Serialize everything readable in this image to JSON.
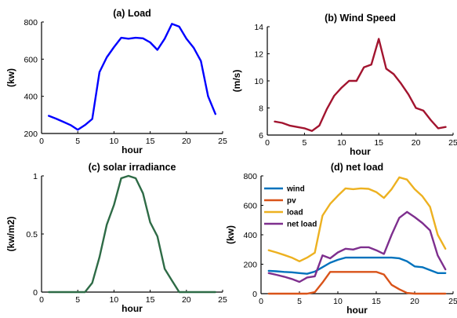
{
  "chart_data": [
    {
      "type": "line",
      "title": "(a) Load",
      "xlabel": "hour",
      "ylabel": "(kw)",
      "xlim": [
        0,
        25
      ],
      "ylim": [
        200,
        800
      ],
      "xticks": [
        0,
        5,
        10,
        15,
        20,
        25
      ],
      "yticks": [
        200,
        400,
        600,
        800
      ],
      "grid": false,
      "legend": "none",
      "x": [
        1,
        2,
        3,
        4,
        5,
        6,
        7,
        8,
        9,
        10,
        11,
        12,
        13,
        14,
        15,
        16,
        17,
        18,
        19,
        20,
        21,
        22,
        23,
        24
      ],
      "series": [
        {
          "color": "#0000ff",
          "values": [
            295,
            280,
            263,
            245,
            220,
            245,
            278,
            530,
            610,
            665,
            715,
            710,
            715,
            712,
            690,
            650,
            710,
            790,
            775,
            710,
            662,
            590,
            400,
            305
          ]
        }
      ]
    },
    {
      "type": "line",
      "title": "(b) Wind Speed",
      "xlabel": "hour",
      "ylabel": "(m/s)",
      "xlim": [
        0,
        25
      ],
      "ylim": [
        6,
        14
      ],
      "xticks": [
        0,
        5,
        10,
        15,
        20,
        25
      ],
      "yticks": [
        6,
        8,
        10,
        12,
        14
      ],
      "grid": false,
      "legend": "none",
      "x": [
        1,
        2,
        3,
        4,
        5,
        6,
        7,
        8,
        9,
        10,
        11,
        12,
        13,
        14,
        15,
        16,
        17,
        18,
        19,
        20,
        21,
        22,
        23,
        24
      ],
      "series": [
        {
          "color": "#a2142f",
          "values": [
            7.0,
            6.9,
            6.7,
            6.6,
            6.5,
            6.3,
            6.7,
            7.9,
            8.9,
            9.5,
            10.0,
            10.0,
            11.0,
            11.2,
            13.1,
            10.9,
            10.5,
            9.8,
            9.0,
            8.0,
            7.8,
            7.1,
            6.5,
            6.6
          ]
        }
      ]
    },
    {
      "type": "line",
      "title": "(c) solar irradiance",
      "xlabel": "hour",
      "ylabel": "(kw/m2)",
      "xlim": [
        0,
        25
      ],
      "ylim": [
        0,
        1
      ],
      "xticks": [
        0,
        5,
        10,
        15,
        20,
        25
      ],
      "yticks": [
        0,
        0.5,
        1
      ],
      "grid": false,
      "legend": "none",
      "x": [
        1,
        2,
        3,
        4,
        5,
        6,
        7,
        8,
        9,
        10,
        11,
        12,
        13,
        14,
        15,
        16,
        17,
        18,
        19,
        20,
        21,
        22,
        23,
        24
      ],
      "series": [
        {
          "color": "#2e6b46",
          "values": [
            0,
            0,
            0,
            0,
            0,
            0,
            0.08,
            0.3,
            0.58,
            0.75,
            0.98,
            1.0,
            0.98,
            0.85,
            0.6,
            0.48,
            0.2,
            0.1,
            0,
            0,
            0,
            0,
            0,
            0
          ]
        }
      ]
    },
    {
      "type": "line",
      "title": "(d) net load",
      "xlabel": "hour",
      "ylabel": "(kw)",
      "xlim": [
        0,
        25
      ],
      "ylim": [
        0,
        800
      ],
      "xticks": [
        0,
        5,
        10,
        15,
        20,
        25
      ],
      "yticks": [
        0,
        200,
        400,
        600,
        800
      ],
      "grid": false,
      "legend": "top-left",
      "x": [
        1,
        2,
        3,
        4,
        5,
        6,
        7,
        8,
        9,
        10,
        11,
        12,
        13,
        14,
        15,
        16,
        17,
        18,
        19,
        20,
        21,
        22,
        23,
        24
      ],
      "series": [
        {
          "name": "wind",
          "color": "#0072bd",
          "values": [
            155,
            152,
            148,
            145,
            140,
            135,
            150,
            180,
            210,
            230,
            245,
            245,
            245,
            245,
            245,
            245,
            245,
            240,
            220,
            185,
            180,
            160,
            140,
            140
          ]
        },
        {
          "name": "pv",
          "color": "#d95319",
          "values": [
            0,
            0,
            0,
            0,
            0,
            0,
            10,
            75,
            148,
            148,
            148,
            148,
            148,
            148,
            148,
            130,
            60,
            30,
            5,
            0,
            0,
            0,
            0,
            0
          ]
        },
        {
          "name": "load",
          "color": "#edb120",
          "values": [
            295,
            280,
            263,
            245,
            220,
            245,
            278,
            530,
            610,
            665,
            715,
            710,
            715,
            712,
            690,
            650,
            710,
            790,
            775,
            710,
            662,
            590,
            400,
            305
          ]
        },
        {
          "name": "net load",
          "color": "#7e2f8e",
          "values": [
            140,
            128,
            115,
            100,
            80,
            110,
            118,
            260,
            240,
            280,
            305,
            300,
            315,
            315,
            295,
            270,
            400,
            515,
            555,
            520,
            480,
            430,
            260,
            165
          ]
        }
      ]
    }
  ]
}
